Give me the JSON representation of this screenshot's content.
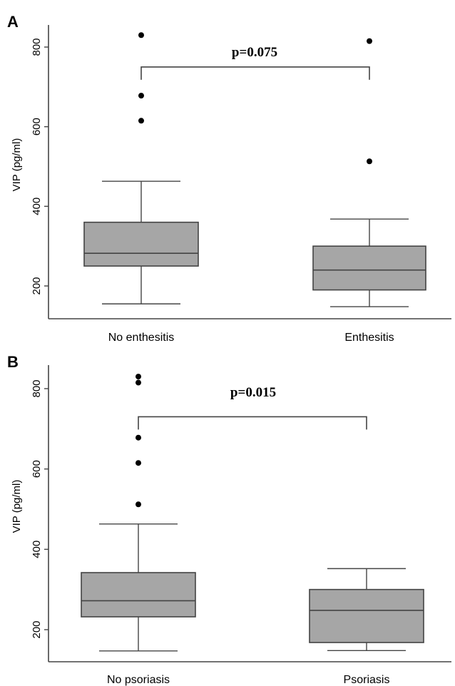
{
  "chart_data": [
    {
      "panel": "A",
      "type": "box",
      "ylabel": "VIP (pg/ml)",
      "yticks": [
        200,
        400,
        600,
        800
      ],
      "ylim": [
        130,
        850
      ],
      "categories": [
        "No enthesitis",
        "Enthesitis"
      ],
      "boxes": [
        {
          "category": "No enthesitis",
          "min": 155,
          "q1": 250,
          "median": 282,
          "q3": 360,
          "max": 463,
          "outliers": [
            615,
            678,
            830
          ]
        },
        {
          "category": "Enthesitis",
          "min": 148,
          "q1": 190,
          "median": 240,
          "q3": 300,
          "max": 368,
          "outliers": [
            513,
            815
          ]
        }
      ],
      "annotation": {
        "text": "p=0.075",
        "bracket_y": 750
      }
    },
    {
      "panel": "B",
      "type": "box",
      "ylabel": "VIP (pg/ml)",
      "yticks": [
        200,
        400,
        600,
        800
      ],
      "ylim": [
        130,
        850
      ],
      "categories": [
        "No psoriasis",
        "Psoriasis"
      ],
      "boxes": [
        {
          "category": "No psoriasis",
          "min": 147,
          "q1": 232,
          "median": 272,
          "q3": 342,
          "max": 463,
          "outliers": [
            512,
            615,
            678,
            815,
            830
          ]
        },
        {
          "category": "Psoriasis",
          "min": 148,
          "q1": 168,
          "median": 248,
          "q3": 300,
          "max": 352,
          "outliers": []
        }
      ],
      "annotation": {
        "text": "p=0.015",
        "bracket_y": 730
      }
    }
  ]
}
